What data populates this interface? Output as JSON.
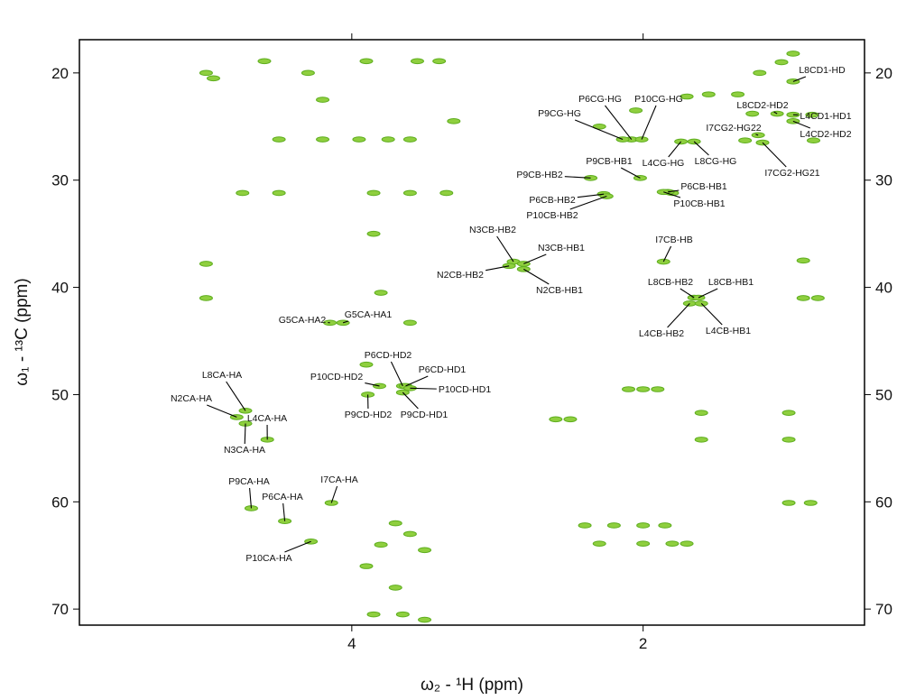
{
  "chart_data": {
    "type": "scatter",
    "xlabel": "ω₂ - ¹H  (ppm)",
    "ylabel": "ω₁ - ¹³C  (ppm)",
    "xlim": [
      5.87,
      0.48
    ],
    "ylim": [
      16.9,
      71.5
    ],
    "xticks": [
      4,
      2
    ],
    "yticks": [
      20,
      30,
      40,
      50,
      60,
      70
    ],
    "color": "#8fcf3f",
    "edge_color": "#5fae1f",
    "peaks": {
      "labels": [
        "L8CD1-HD",
        "L8CD2-HD2",
        "L4CD1-HD1",
        "L4CD2-HD2",
        "I7CG2-HG22",
        "I7CG2-HG21",
        "L8CG-HG",
        "L4CG-HG",
        "P6CG-HG",
        "P10CG-HG",
        "P9CG-HG",
        "P9CB-HB1",
        "P9CB-HB2",
        "P6CB-HB1",
        "P10CB-HB1",
        "P6CB-HB2",
        "P10CB-HB2",
        "N3CB-HB2",
        "N3CB-HB1",
        "N2CB-HB2",
        "N2CB-HB1",
        "I7CB-HB",
        "L8CB-HB2",
        "L8CB-HB1",
        "L4CB-HB2",
        "L4CB-HB1",
        "G5CA-HA2",
        "G5CA-HA1",
        "P6CD-HD2",
        "P6CD-HD1",
        "P10CD-HD2",
        "P10CD-HD1",
        "P9CD-HD2",
        "P9CD-HD1",
        "L8CA-HA",
        "N2CA-HA",
        "N3CA-HA",
        "L4CA-HA",
        "P9CA-HA",
        "P6CA-HA",
        "I7CA-HA",
        "P10CA-HA"
      ],
      "x": [
        0.97,
        1.08,
        0.97,
        0.97,
        1.21,
        1.18,
        1.65,
        1.74,
        2.08,
        2.01,
        2.14,
        2.02,
        2.36,
        1.83,
        1.86,
        2.27,
        2.25,
        2.89,
        2.82,
        2.92,
        2.82,
        1.86,
        1.65,
        1.62,
        1.68,
        1.6,
        4.15,
        4.06,
        3.65,
        3.63,
        3.81,
        3.6,
        3.89,
        3.65,
        4.73,
        4.79,
        4.73,
        4.58,
        4.69,
        4.46,
        4.14,
        4.28
      ],
      "y": [
        20.8,
        23.8,
        23.9,
        24.5,
        25.8,
        26.5,
        26.4,
        26.4,
        26.2,
        26.2,
        26.2,
        29.8,
        29.8,
        31.1,
        31.1,
        31.3,
        31.5,
        37.6,
        37.8,
        38.0,
        38.3,
        37.6,
        40.96,
        40.96,
        41.5,
        41.5,
        43.3,
        43.3,
        49.2,
        49.2,
        49.2,
        49.4,
        50.0,
        49.8,
        51.5,
        52.1,
        52.7,
        54.2,
        60.6,
        61.8,
        60.1,
        63.7
      ]
    },
    "other_peaks": {
      "x": [
        3.9,
        3.55,
        3.4,
        4.6,
        5.0,
        4.95,
        4.3,
        4.2,
        4.5,
        4.2,
        3.95,
        3.75,
        3.6,
        4.75,
        4.5,
        3.85,
        3.6,
        3.3,
        3.35,
        5.0,
        5.0,
        3.85,
        3.8,
        3.6,
        3.9,
        2.6,
        2.5,
        2.1,
        2.0,
        1.9,
        1.6,
        1.6,
        1.0,
        1.0,
        0.9,
        0.8,
        0.9,
        0.85,
        1.0,
        2.4,
        2.2,
        2.0,
        1.85,
        2.0,
        1.8,
        1.7,
        2.3,
        3.7,
        3.8,
        3.6,
        3.5,
        3.9,
        3.7,
        3.85,
        3.5,
        3.65,
        1.55,
        1.7,
        1.35,
        1.2,
        1.05,
        0.97,
        1.25,
        1.3,
        1.8,
        2.3,
        2.05,
        0.83,
        0.84
      ],
      "y": [
        18.9,
        18.9,
        18.9,
        18.9,
        20.0,
        20.5,
        20.0,
        22.5,
        26.2,
        26.2,
        26.2,
        26.2,
        26.2,
        31.2,
        31.2,
        31.2,
        31.2,
        24.5,
        31.2,
        37.8,
        41.0,
        35.0,
        40.5,
        43.3,
        47.2,
        52.3,
        52.3,
        49.5,
        49.5,
        49.5,
        51.7,
        54.2,
        51.7,
        54.2,
        41.0,
        41.0,
        37.5,
        60.1,
        60.1,
        62.2,
        62.2,
        62.2,
        62.2,
        63.9,
        63.9,
        63.9,
        63.9,
        62.0,
        64.0,
        63.0,
        64.5,
        66.0,
        68.0,
        70.5,
        71.0,
        70.5,
        22.0,
        22.2,
        22.0,
        20.0,
        19.0,
        18.2,
        23.8,
        26.3,
        31.2,
        25.0,
        23.5,
        26.3,
        23.9
      ]
    }
  }
}
